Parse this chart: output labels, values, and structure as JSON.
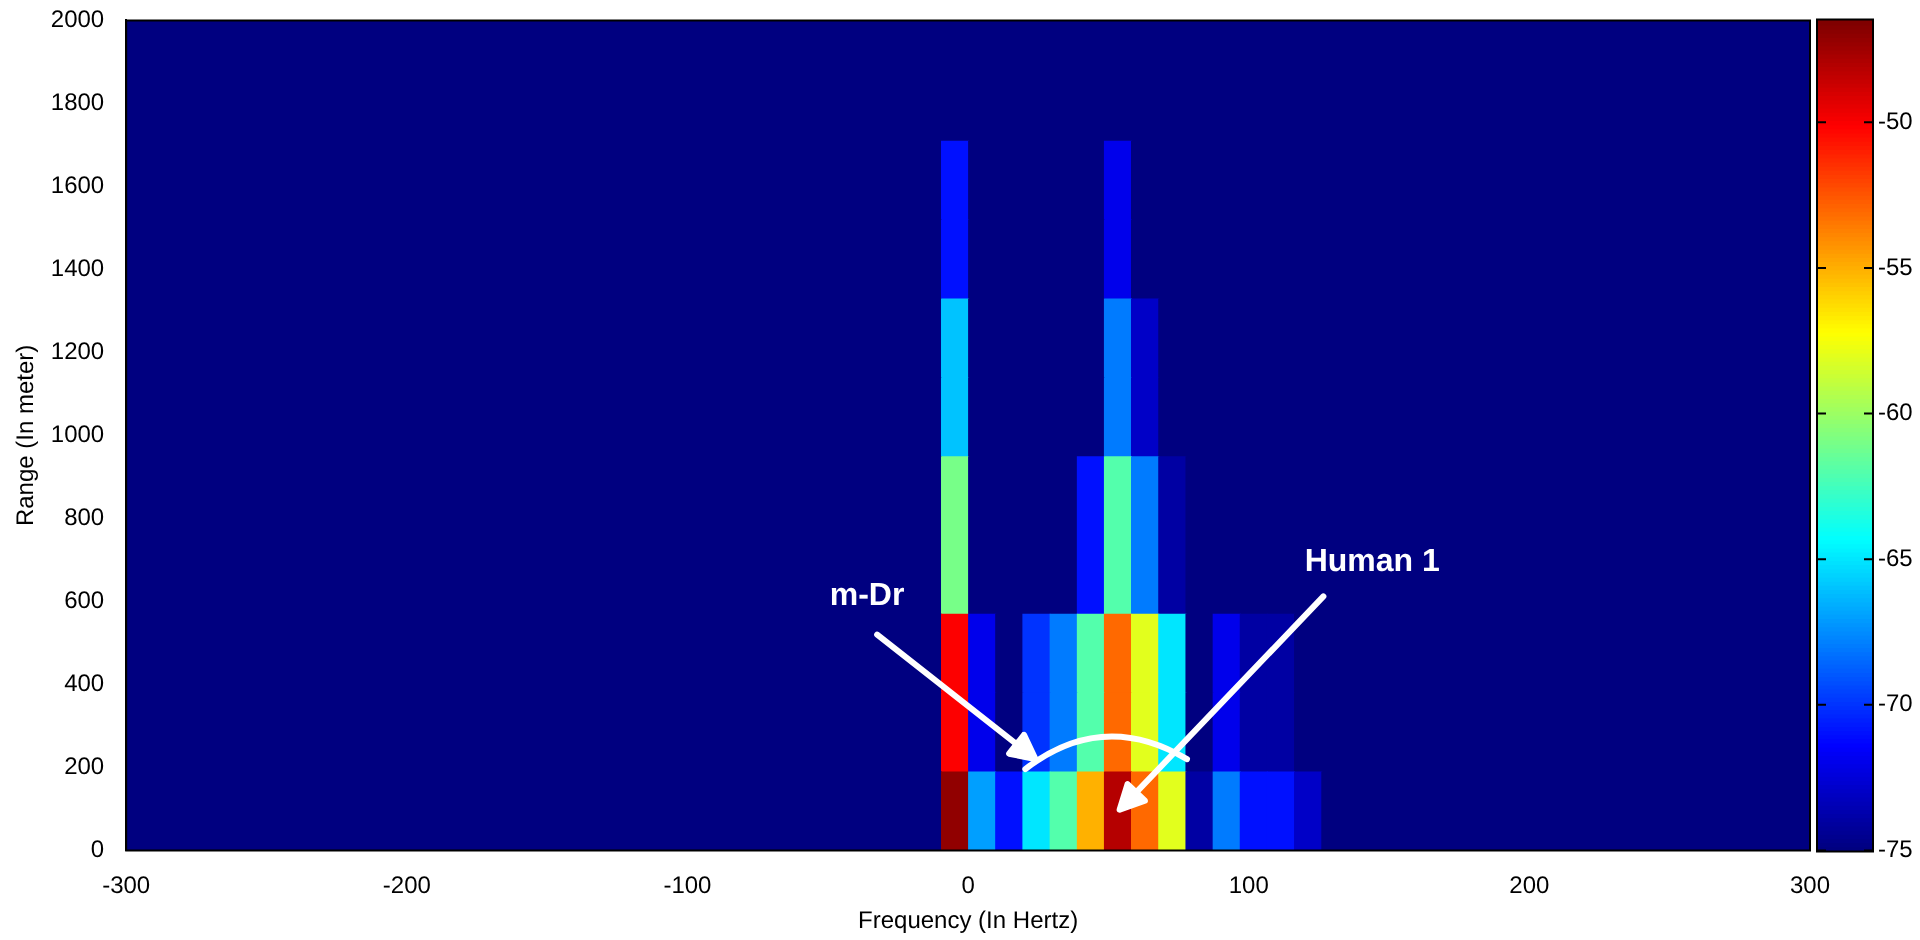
{
  "chart_data": {
    "type": "heatmap",
    "xlabel": "Frequency (In Hertz)",
    "ylabel": "Range (In meter)",
    "x": [
      -295.2,
      -285.6,
      -275.9,
      -266.2,
      -256.5,
      -246.9,
      -237.2,
      -227.5,
      -217.8,
      -208.1,
      -198.5,
      -188.8,
      -179.1,
      -169.4,
      -159.8,
      -150.1,
      -140.4,
      -130.7,
      -121.0,
      -111.3,
      -101.6,
      -92.0,
      -82.3,
      -72.6,
      -62.9,
      -53.2,
      -43.6,
      -33.9,
      -24.2,
      -14.5,
      -4.8,
      4.8,
      14.5,
      24.2,
      33.9,
      43.6,
      53.2,
      62.9,
      72.6,
      82.3,
      92.0,
      101.6,
      111.3,
      121.0,
      130.7,
      140.4,
      150.1,
      159.8,
      169.4,
      179.1,
      188.8,
      198.5,
      208.1,
      217.8,
      227.5,
      237.2,
      246.9,
      256.5,
      266.2,
      275.9,
      285.6,
      295.2
    ],
    "y": [
      1950,
      1805,
      1615,
      1425,
      1235,
      1045,
      855,
      665,
      475,
      285,
      95
    ],
    "cells": [
      [
        -75,
        -75,
        -75,
        -75,
        -75,
        -75,
        -75,
        -75,
        -75,
        -75,
        -75,
        -75,
        -75,
        -75,
        -75,
        -75,
        -75,
        -75,
        -75,
        -75,
        -75,
        -75,
        -75,
        -75,
        -75,
        -75,
        -75,
        -75,
        -75,
        -75,
        -75,
        -75,
        -75,
        -75,
        -75,
        -75,
        -75,
        -75,
        -75,
        -75,
        -75,
        -75,
        -75,
        -75,
        -75,
        -75,
        -75,
        -75,
        -75,
        -75,
        -75,
        -75,
        -75,
        -75,
        -75,
        -75,
        -75,
        -75,
        -75,
        -75,
        -75,
        -75
      ],
      [
        -75,
        -75,
        -75,
        -75,
        -75,
        -75,
        -75,
        -75,
        -75,
        -75,
        -75,
        -75,
        -75,
        -75,
        -75,
        -75,
        -75,
        -75,
        -75,
        -75,
        -75,
        -75,
        -75,
        -75,
        -75,
        -75,
        -75,
        -75,
        -75,
        -75,
        -75,
        -75,
        -75,
        -75,
        -75,
        -75,
        -75,
        -75,
        -75,
        -75,
        -75,
        -75,
        -75,
        -75,
        -75,
        -75,
        -75,
        -75,
        -75,
        -75,
        -75,
        -75,
        -75,
        -75,
        -75,
        -75,
        -75,
        -75,
        -75,
        -75,
        -75,
        -75
      ],
      [
        -75,
        -75,
        -75,
        -75,
        -75,
        -75,
        -75,
        -75,
        -75,
        -75,
        -75,
        -75,
        -75,
        -75,
        -75,
        -75,
        -75,
        -75,
        -75,
        -75,
        -75,
        -75,
        -75,
        -75,
        -75,
        -75,
        -75,
        -75,
        -75,
        -75,
        -71,
        -75,
        -75,
        -75,
        -75,
        -75,
        -72,
        -75,
        -75,
        -75,
        -75,
        -75,
        -75,
        -75,
        -75,
        -75,
        -75,
        -75,
        -75,
        -75,
        -75,
        -75,
        -75,
        -75,
        -75,
        -75,
        -75,
        -75,
        -75,
        -75,
        -75,
        -75
      ],
      [
        -75,
        -75,
        -75,
        -75,
        -75,
        -75,
        -75,
        -75,
        -75,
        -75,
        -75,
        -75,
        -75,
        -75,
        -75,
        -75,
        -75,
        -75,
        -75,
        -75,
        -75,
        -75,
        -75,
        -75,
        -75,
        -75,
        -75,
        -75,
        -75,
        -75,
        -71,
        -75,
        -75,
        -75,
        -75,
        -75,
        -72,
        -75,
        -75,
        -75,
        -75,
        -75,
        -75,
        -75,
        -75,
        -75,
        -75,
        -75,
        -75,
        -75,
        -75,
        -75,
        -75,
        -75,
        -75,
        -75,
        -75,
        -75,
        -75,
        -75,
        -75,
        -75
      ],
      [
        -75,
        -75,
        -75,
        -75,
        -75,
        -75,
        -75,
        -75,
        -75,
        -75,
        -75,
        -75,
        -75,
        -75,
        -75,
        -75,
        -75,
        -75,
        -75,
        -75,
        -75,
        -75,
        -75,
        -75,
        -75,
        -75,
        -75,
        -75,
        -75,
        -75,
        -66,
        -75,
        -75,
        -75,
        -75,
        -75,
        -68,
        -73,
        -75,
        -75,
        -75,
        -75,
        -75,
        -75,
        -75,
        -75,
        -75,
        -75,
        -75,
        -75,
        -75,
        -75,
        -75,
        -75,
        -75,
        -75,
        -75,
        -75,
        -75,
        -75,
        -75,
        -75
      ],
      [
        -75,
        -75,
        -75,
        -75,
        -75,
        -75,
        -75,
        -75,
        -75,
        -75,
        -75,
        -75,
        -75,
        -75,
        -75,
        -75,
        -75,
        -75,
        -75,
        -75,
        -75,
        -75,
        -75,
        -75,
        -75,
        -75,
        -75,
        -75,
        -75,
        -75,
        -66,
        -75,
        -75,
        -75,
        -75,
        -75,
        -68,
        -73,
        -75,
        -75,
        -75,
        -75,
        -75,
        -75,
        -75,
        -75,
        -75,
        -75,
        -75,
        -75,
        -75,
        -75,
        -75,
        -75,
        -75,
        -75,
        -75,
        -75,
        -75,
        -75,
        -75,
        -75
      ],
      [
        -75,
        -75,
        -75,
        -75,
        -75,
        -75,
        -75,
        -75,
        -75,
        -75,
        -75,
        -75,
        -75,
        -75,
        -75,
        -75,
        -75,
        -75,
        -75,
        -75,
        -75,
        -75,
        -75,
        -75,
        -75,
        -75,
        -75,
        -75,
        -75,
        -75,
        -61,
        -75,
        -75,
        -75,
        -75,
        -71,
        -62,
        -68,
        -74,
        -75,
        -75,
        -75,
        -75,
        -75,
        -75,
        -75,
        -75,
        -75,
        -75,
        -75,
        -75,
        -75,
        -75,
        -75,
        -75,
        -75,
        -75,
        -75,
        -75,
        -75,
        -75,
        -75
      ],
      [
        -75,
        -75,
        -75,
        -75,
        -75,
        -75,
        -75,
        -75,
        -75,
        -75,
        -75,
        -75,
        -75,
        -75,
        -75,
        -75,
        -75,
        -75,
        -75,
        -75,
        -75,
        -75,
        -75,
        -75,
        -75,
        -75,
        -75,
        -75,
        -75,
        -75,
        -61,
        -75,
        -75,
        -75,
        -75,
        -71,
        -62,
        -68,
        -74,
        -75,
        -75,
        -75,
        -75,
        -75,
        -75,
        -75,
        -75,
        -75,
        -75,
        -75,
        -75,
        -75,
        -75,
        -75,
        -75,
        -75,
        -75,
        -75,
        -75,
        -75,
        -75,
        -75
      ],
      [
        -75,
        -75,
        -75,
        -75,
        -75,
        -75,
        -75,
        -75,
        -75,
        -75,
        -75,
        -75,
        -75,
        -75,
        -75,
        -75,
        -75,
        -75,
        -75,
        -75,
        -75,
        -75,
        -75,
        -75,
        -75,
        -75,
        -75,
        -75,
        -75,
        -75,
        -50,
        -72,
        -75,
        -70,
        -68,
        -62,
        -53,
        -58,
        -65,
        -75,
        -72,
        -74,
        -74,
        -75,
        -75,
        -75,
        -75,
        -75,
        -75,
        -75,
        -75,
        -75,
        -75,
        -75,
        -75,
        -75,
        -75,
        -75,
        -75,
        -75,
        -75,
        -75
      ],
      [
        -75,
        -75,
        -75,
        -75,
        -75,
        -75,
        -75,
        -75,
        -75,
        -75,
        -75,
        -75,
        -75,
        -75,
        -75,
        -75,
        -75,
        -75,
        -75,
        -75,
        -75,
        -75,
        -75,
        -75,
        -75,
        -75,
        -75,
        -75,
        -75,
        -75,
        -50,
        -72,
        -75,
        -70,
        -68,
        -62,
        -53,
        -58,
        -65,
        -75,
        -72,
        -74,
        -74,
        -75,
        -75,
        -75,
        -75,
        -75,
        -75,
        -75,
        -75,
        -75,
        -75,
        -75,
        -75,
        -75,
        -75,
        -75,
        -75,
        -75,
        -75,
        -75
      ],
      [
        -75,
        -75,
        -75,
        -75,
        -75,
        -75,
        -75,
        -75,
        -75,
        -75,
        -75,
        -75,
        -75,
        -75,
        -75,
        -75,
        -75,
        -75,
        -75,
        -75,
        -75,
        -75,
        -75,
        -75,
        -75,
        -75,
        -75,
        -75,
        -75,
        -75,
        -47,
        -67,
        -71,
        -65,
        -62,
        -55,
        -48,
        -53,
        -58,
        -74,
        -68,
        -71,
        -71,
        -73,
        -75,
        -75,
        -75,
        -75,
        -75,
        -75,
        -75,
        -75,
        -75,
        -75,
        -75,
        -75,
        -75,
        -75,
        -75,
        -75,
        -75,
        -75
      ]
    ],
    "xlim": [
      -300,
      300
    ],
    "xticks": [
      -300,
      -200,
      -100,
      0,
      100,
      200,
      300
    ],
    "ylim": [
      0,
      2000
    ],
    "yticks": [
      0,
      200,
      400,
      600,
      800,
      1000,
      1200,
      1400,
      1600,
      1800,
      2000
    ],
    "clim": [
      -75,
      -46.5
    ],
    "cticks": [
      -75,
      -70,
      -65,
      -60,
      -55,
      -50
    ],
    "annotations": [
      "m-Dr",
      "Human 1"
    ]
  }
}
